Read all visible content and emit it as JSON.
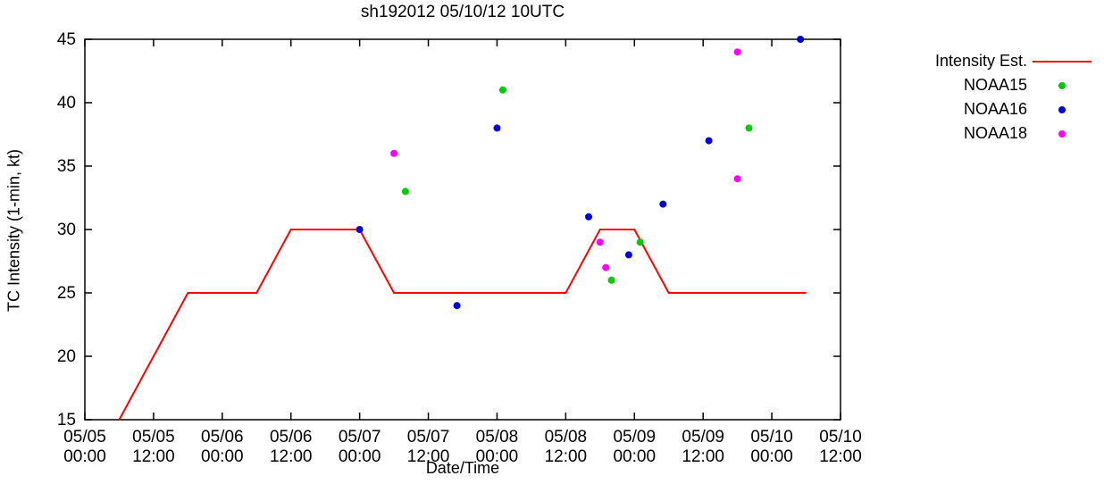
{
  "title": "sh192012 05/10/12 10UTC",
  "axes": {
    "ylabel": "TC Intensity (1-min, kt)",
    "xlabel": "Date/Time"
  },
  "legend": {
    "items": [
      {
        "label": "Intensity Est.",
        "marker": "line",
        "color": "#ff0000"
      },
      {
        "label": "NOAA15",
        "marker": "dot",
        "color": "#00cc00"
      },
      {
        "label": "NOAA16",
        "marker": "dot",
        "color": "#0000dd"
      },
      {
        "label": "NOAA18",
        "marker": "dot",
        "color": "#ff00ff"
      }
    ]
  },
  "chart_data": {
    "type": "line",
    "title": "sh192012 05/10/12 10UTC",
    "xlabel": "Date/Time",
    "ylabel": "TC Intensity (1-min, kt)",
    "ylim": [
      15,
      45
    ],
    "yticks": [
      15,
      20,
      25,
      30,
      35,
      40,
      45
    ],
    "x_unit": "hours since 05/05 00:00",
    "x_hours_range": [
      0,
      132
    ],
    "xticks": [
      {
        "hours": 0,
        "date": "05/05",
        "time": "00:00"
      },
      {
        "hours": 12,
        "date": "05/05",
        "time": "12:00"
      },
      {
        "hours": 24,
        "date": "05/06",
        "time": "00:00"
      },
      {
        "hours": 36,
        "date": "05/06",
        "time": "12:00"
      },
      {
        "hours": 48,
        "date": "05/07",
        "time": "00:00"
      },
      {
        "hours": 60,
        "date": "05/07",
        "time": "12:00"
      },
      {
        "hours": 72,
        "date": "05/08",
        "time": "00:00"
      },
      {
        "hours": 84,
        "date": "05/08",
        "time": "12:00"
      },
      {
        "hours": 96,
        "date": "05/09",
        "time": "00:00"
      },
      {
        "hours": 108,
        "date": "05/09",
        "time": "12:00"
      },
      {
        "hours": 120,
        "date": "05/10",
        "time": "00:00"
      },
      {
        "hours": 132,
        "date": "05/10",
        "time": "12:00"
      }
    ],
    "grid": false,
    "legend_position": "outside-top-right",
    "series": [
      {
        "name": "Intensity Est.",
        "type": "line",
        "color": "#ff0000",
        "points": [
          [
            6,
            15
          ],
          [
            18,
            25
          ],
          [
            30,
            25
          ],
          [
            36,
            30
          ],
          [
            48,
            30
          ],
          [
            54,
            25
          ],
          [
            84,
            25
          ],
          [
            90,
            30
          ],
          [
            96,
            30
          ],
          [
            102,
            25
          ],
          [
            126,
            25
          ]
        ]
      },
      {
        "name": "NOAA15",
        "type": "scatter",
        "color": "#00cc00",
        "points": [
          [
            56,
            33
          ],
          [
            73,
            41
          ],
          [
            92,
            26
          ],
          [
            97,
            29
          ],
          [
            116,
            38
          ]
        ]
      },
      {
        "name": "NOAA16",
        "type": "scatter",
        "color": "#0000dd",
        "points": [
          [
            48,
            30
          ],
          [
            65,
            24
          ],
          [
            72,
            38
          ],
          [
            88,
            31
          ],
          [
            95,
            28
          ],
          [
            101,
            32
          ],
          [
            109,
            37
          ],
          [
            125,
            45
          ]
        ]
      },
      {
        "name": "NOAA18",
        "type": "scatter",
        "color": "#ff00ff",
        "points": [
          [
            54,
            36
          ],
          [
            90,
            29
          ],
          [
            91,
            27
          ],
          [
            114,
            44
          ],
          [
            114,
            34
          ]
        ]
      }
    ]
  }
}
